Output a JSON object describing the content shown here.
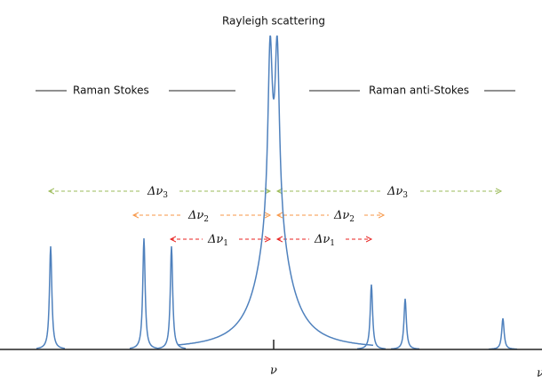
{
  "title": "Rayleigh scattering",
  "regions": {
    "stokes": "Raman Stokes",
    "anti_stokes": "Raman anti-Stokes"
  },
  "shifts": [
    {
      "symbol": "Δν",
      "subscript": "3"
    },
    {
      "symbol": "Δν",
      "subscript": "2"
    },
    {
      "symbol": "Δν",
      "subscript": "1"
    }
  ],
  "axis": {
    "center_label": "ν",
    "end_label": "ν"
  }
}
